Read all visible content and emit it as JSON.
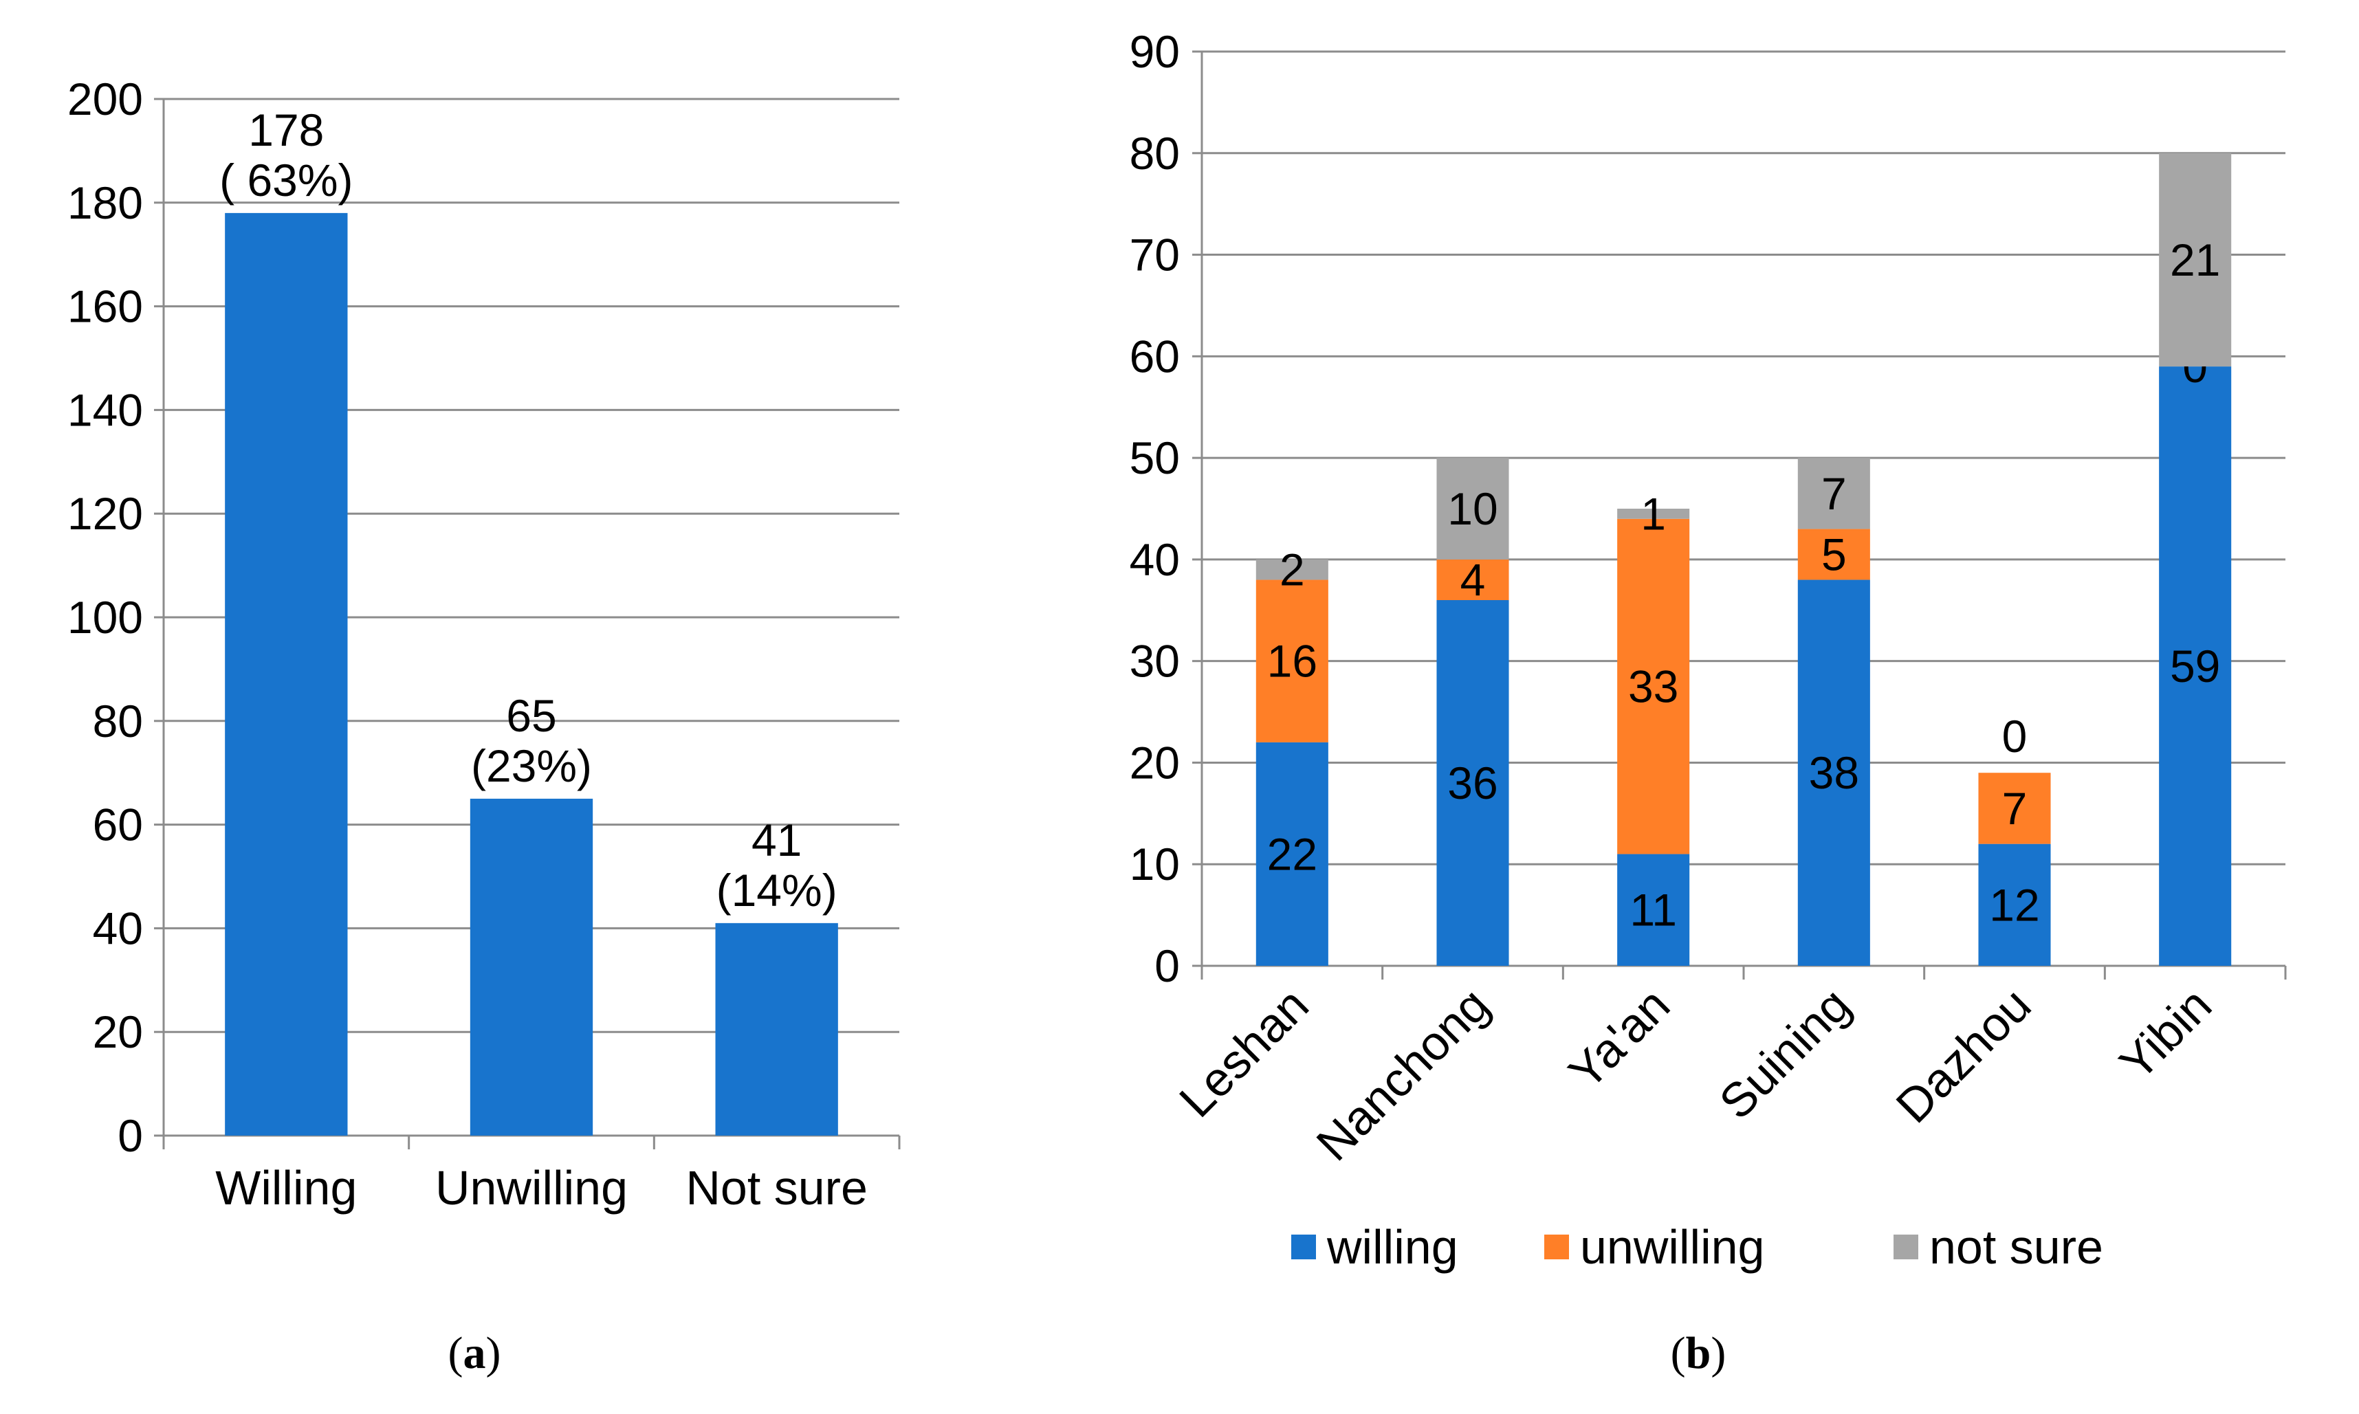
{
  "chart_data": [
    {
      "id": "a",
      "type": "bar",
      "categories": [
        "Willing",
        "Unwilling",
        "Not sure"
      ],
      "values": [
        178,
        65,
        41
      ],
      "data_labels": [
        [
          "178",
          "( 63%)"
        ],
        [
          "65",
          "(23%)"
        ],
        [
          "41",
          "(14%)"
        ]
      ],
      "ylim": [
        0,
        200
      ],
      "yticks": [
        0,
        20,
        40,
        60,
        80,
        100,
        120,
        140,
        160,
        180,
        200
      ],
      "grid": true,
      "color": "#1874CD",
      "caption_letter": "a"
    },
    {
      "id": "b",
      "type": "bar",
      "stacked": true,
      "categories": [
        "Leshan",
        "Nanchong",
        "Ya'an",
        "Suining",
        "Dazhou",
        "Yibin"
      ],
      "series": [
        {
          "name": "willing",
          "color": "#1874CD",
          "values": [
            22,
            36,
            11,
            38,
            12,
            59
          ]
        },
        {
          "name": "unwilling",
          "color": "#FF7F27",
          "values": [
            16,
            4,
            33,
            5,
            7,
            0
          ]
        },
        {
          "name": "not sure",
          "color": "#A6A6A6",
          "values": [
            2,
            10,
            1,
            7,
            0,
            21
          ]
        }
      ],
      "ylim": [
        0,
        90
      ],
      "yticks": [
        0,
        10,
        20,
        30,
        40,
        50,
        60,
        70,
        80,
        90
      ],
      "grid": true,
      "legend_position": "bottom",
      "caption_letter": "b"
    }
  ]
}
